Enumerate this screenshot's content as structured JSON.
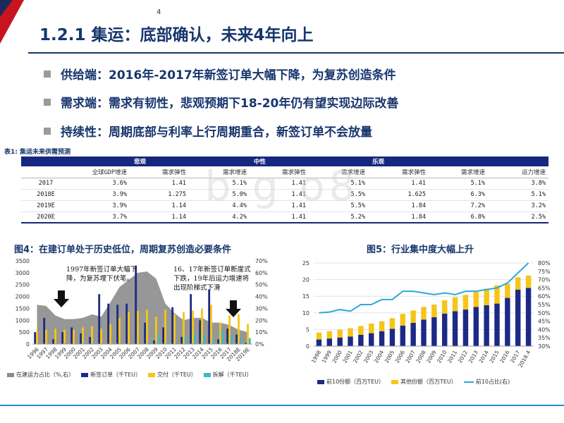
{
  "page": {
    "title": "1.2.1 集运：底部确认，未来4年向上",
    "page_number": "4"
  },
  "bullets": [
    {
      "text": "供给端：2016年-2017年新签订单大幅下降，为复苏创造条件"
    },
    {
      "text": "需求端：需求有韧性，悲观预期下18-20年仍有望实现边际改善"
    },
    {
      "text": "持续性：周期底部与利率上行周期重合，新签订单不会放量"
    }
  ],
  "table": {
    "caption": "表1:  集运未来供需预测",
    "groups": [
      "悲观",
      "中性",
      "乐观"
    ],
    "subheaders": [
      "全球GDP增速",
      "需求弹性",
      "需求增速",
      "需求弹性",
      "需求增速",
      "需求弹性",
      "需求增速",
      "运力增速"
    ],
    "rows": [
      {
        "year": "2017",
        "cells": [
          "3.6%",
          "1.41",
          "5.1%",
          "1.41",
          "5.1%",
          "1.41",
          "5.1%",
          "3.8%"
        ]
      },
      {
        "year": "2018E",
        "cells": [
          "3.9%",
          "1.275",
          "5.0%",
          "1.41",
          "5.5%",
          "1.625",
          "6.3%",
          "5.1%"
        ]
      },
      {
        "year": "2019E",
        "cells": [
          "3.9%",
          "1.14",
          "4.4%",
          "1.41",
          "5.5%",
          "1.84",
          "7.2%",
          "3.2%"
        ]
      },
      {
        "year": "2020E",
        "cells": [
          "3.7%",
          "1.14",
          "4.2%",
          "1.41",
          "5.2%",
          "1.84",
          "6.8%",
          "2.5%"
        ]
      }
    ]
  },
  "watermark": "b g o8",
  "colors": {
    "brand_navy": "#17366d",
    "table_header": "#16277f",
    "area_gray": "#8c8c8c",
    "bar_navy": "#1c2a86",
    "bar_yellow": "#f5c518",
    "bar_teal": "#3cb8c8",
    "line_blue": "#2ea8dc",
    "accent_red": "#c8141e"
  },
  "chart1": {
    "title": "图4：在建订单处于历史低位，周期复苏创造必要条件",
    "annotation1": "1997年新签订单大幅下\n降，为复苏埋下伏笔。",
    "annotation2": "16、17年新签订单断崖式\n下跌，19年后运力增速将\n出现阶梯式下滑",
    "legend": [
      "在建运力占比（%,右）",
      "新签订单（千TEU）",
      "交付（千TEU）",
      "拆解（千TEU）"
    ]
  },
  "chart2": {
    "title": "图5：行业集中度大幅上升",
    "legend": [
      "前10份额（百万TEU）",
      "其他份额（百万TEU）",
      "前10占比(右)"
    ]
  },
  "chart_data": [
    {
      "type": "bar",
      "title": "图4：在建订单处于历史低位，周期复苏创造必要条件",
      "categories": [
        "1996",
        "1997",
        "1998",
        "1999",
        "2000",
        "2001",
        "2002",
        "2003",
        "2004",
        "2005",
        "2006",
        "2007",
        "2008",
        "2009",
        "2010",
        "2011",
        "2012",
        "2013",
        "2014",
        "2015",
        "2016",
        "2017",
        "2018E",
        "2019E"
      ],
      "ylim": [
        0,
        3500
      ],
      "yticks": [
        "0",
        "500",
        "1000",
        "1500",
        "2000",
        "2500",
        "3000",
        "3500"
      ],
      "y2lim": [
        0,
        70
      ],
      "y2ticks": [
        "0%",
        "10%",
        "20%",
        "30%",
        "40%",
        "50%",
        "60%",
        "70%"
      ],
      "series": [
        {
          "name": "在建运力占比（%,右）",
          "kind": "area",
          "axis": "right",
          "values": [
            33,
            32,
            24,
            21,
            21,
            22,
            25,
            23,
            35,
            48,
            54,
            60,
            61,
            55,
            34,
            26,
            20,
            22,
            22,
            18,
            18,
            16,
            12,
            10
          ]
        },
        {
          "name": "新签订单（千TEU）",
          "kind": "bar",
          "axis": "left",
          "values": [
            500,
            1100,
            200,
            500,
            700,
            450,
            300,
            2100,
            1700,
            1650,
            1700,
            3300,
            900,
            150,
            700,
            1550,
            300,
            2100,
            1000,
            2300,
            200,
            650,
            400,
            50
          ]
        },
        {
          "name": "交付（千TEU）",
          "kind": "bar",
          "axis": "left",
          "values": [
            550,
            600,
            650,
            600,
            600,
            700,
            750,
            650,
            850,
            1100,
            1350,
            1400,
            1450,
            1150,
            1450,
            1250,
            1350,
            1400,
            1500,
            1650,
            900,
            1200,
            1250,
            850
          ]
        },
        {
          "name": "拆解（千TEU）",
          "kind": "bar",
          "axis": "left",
          "values": [
            20,
            20,
            40,
            30,
            20,
            80,
            120,
            40,
            10,
            20,
            20,
            30,
            100,
            400,
            100,
            30,
            330,
            450,
            400,
            200,
            650,
            400,
            200,
            250
          ]
        }
      ]
    },
    {
      "type": "bar",
      "title": "图5：行业集中度大幅上升",
      "categories": [
        "1998",
        "1999",
        "2000",
        "2001",
        "2002",
        "2003",
        "2004",
        "2005",
        "2006",
        "2007",
        "2008",
        "2009",
        "2010",
        "2011",
        "2012",
        "2013",
        "2014",
        "2015",
        "2016",
        "2017",
        "2018.4"
      ],
      "ylim": [
        0,
        25
      ],
      "yticks": [
        "0",
        "5",
        "10",
        "15",
        "20",
        "25"
      ],
      "y2lim": [
        30,
        80
      ],
      "y2ticks": [
        "30%",
        "35%",
        "40%",
        "45%",
        "50%",
        "55%",
        "60%",
        "65%",
        "70%",
        "75%",
        "80%"
      ],
      "series": [
        {
          "name": "前10份额（百万TEU）",
          "kind": "stack",
          "axis": "left",
          "values": [
            2.0,
            2.3,
            2.6,
            2.9,
            3.4,
            3.9,
            4.5,
            5.2,
            6.2,
            7.0,
            8.0,
            8.7,
            9.8,
            10.5,
            11.0,
            11.8,
            12.3,
            12.8,
            14.5,
            17.0,
            17.5
          ]
        },
        {
          "name": "其他份额（百万TEU）",
          "kind": "stack",
          "axis": "left",
          "values": [
            2.1,
            2.2,
            2.4,
            2.5,
            2.7,
            2.9,
            3.0,
            3.2,
            3.5,
            3.7,
            3.8,
            3.8,
            4.0,
            4.2,
            4.4,
            4.6,
            5.0,
            5.5,
            4.3,
            3.7,
            3.7
          ]
        },
        {
          "name": "前10占比(右)",
          "kind": "line",
          "axis": "right",
          "values": [
            50,
            50.5,
            52,
            51,
            55,
            55,
            58,
            58,
            63,
            63,
            62,
            61,
            62,
            61,
            63,
            63,
            64,
            65,
            68,
            74,
            80
          ]
        }
      ]
    }
  ]
}
